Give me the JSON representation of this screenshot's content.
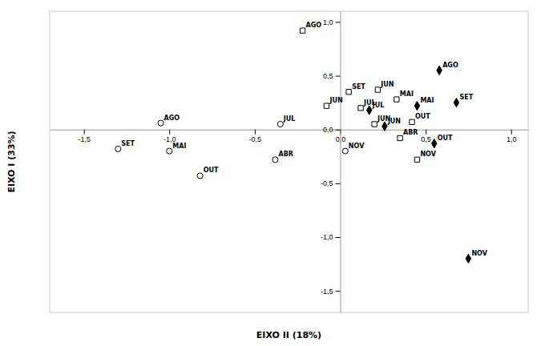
{
  "chart_data": {
    "type": "scatter",
    "xlabel": "EIXO II (18%)",
    "ylabel": "EIXO I (33%)",
    "xlim": [
      -1.7,
      1.1
    ],
    "ylim": [
      -1.7,
      1.1
    ],
    "xticks": [
      {
        "value": -1.5,
        "label": "-1,5"
      },
      {
        "value": -1.0,
        "label": "-1,0"
      },
      {
        "value": -0.5,
        "label": "-0,5"
      },
      {
        "value": 0.0,
        "label": "0,0"
      },
      {
        "value": 0.5,
        "label": "0,5"
      },
      {
        "value": 1.0,
        "label": "1,0"
      }
    ],
    "yticks": [
      {
        "value": -1.5,
        "label": "-1,5"
      },
      {
        "value": -1.0,
        "label": "-1,0"
      },
      {
        "value": -0.5,
        "label": "-0,5"
      },
      {
        "value": 0.0,
        "label": "0,0"
      },
      {
        "value": 0.5,
        "label": "0,5"
      },
      {
        "value": 1.0,
        "label": "1,0"
      }
    ],
    "color": "#000000",
    "series": [
      {
        "marker": "open-circle",
        "labels": [
          "AGO",
          "JUL",
          "SET",
          "MAI",
          "ABR",
          "OUT",
          "NOV"
        ],
        "x": [
          -1.05,
          -0.35,
          -1.3,
          -1.0,
          -0.38,
          -0.82,
          0.03
        ],
        "values": [
          0.06,
          0.05,
          -0.18,
          -0.2,
          -0.28,
          -0.43,
          -0.2
        ]
      },
      {
        "marker": "open-square",
        "labels": [
          "AGO",
          "SET",
          "JUN",
          "JUN",
          "JUL",
          "MAI",
          "JUN",
          "OUT",
          "ABR",
          "NOV"
        ],
        "x": [
          -0.22,
          0.05,
          0.22,
          -0.08,
          0.12,
          0.33,
          0.2,
          0.42,
          0.35,
          0.45
        ],
        "values": [
          0.92,
          0.35,
          0.37,
          0.22,
          0.2,
          0.28,
          0.05,
          0.07,
          -0.08,
          -0.28
        ]
      },
      {
        "marker": "diamond",
        "labels": [
          "AGO",
          "SET",
          "JUL",
          "MAI",
          "JUN",
          "OUT",
          "NOV"
        ],
        "x": [
          0.58,
          0.68,
          0.17,
          0.45,
          0.26,
          0.55,
          0.75
        ],
        "values": [
          0.55,
          0.25,
          0.18,
          0.22,
          0.03,
          -0.13,
          -1.2
        ]
      }
    ]
  }
}
